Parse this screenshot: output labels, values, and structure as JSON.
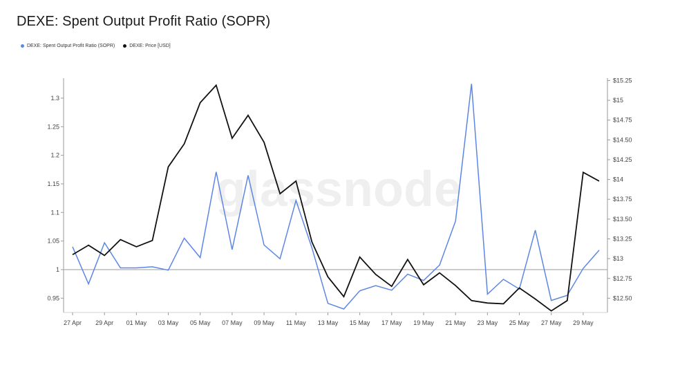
{
  "title": "DEXE: Spent Output Profit Ratio (SOPR)",
  "watermark": "glassnode",
  "colors": {
    "sopr": "#5b86e5",
    "price": "#111111",
    "axis": "#9a9a9a",
    "baseline": "#9a9a9a"
  },
  "legend": [
    {
      "label": "DEXE: Spent Output Profit Ratio (SOPR)",
      "color": "#5b86e5"
    },
    {
      "label": "DEXE: Price [USD]",
      "color": "#111111"
    }
  ],
  "chart_data": {
    "type": "line",
    "title": "DEXE: Spent Output Profit Ratio (SOPR)",
    "categories": [
      "27 Apr",
      "28 Apr",
      "29 Apr",
      "30 Apr",
      "01 May",
      "02 May",
      "03 May",
      "04 May",
      "05 May",
      "06 May",
      "07 May",
      "08 May",
      "09 May",
      "10 May",
      "11 May",
      "12 May",
      "13 May",
      "14 May",
      "15 May",
      "16 May",
      "17 May",
      "18 May",
      "19 May",
      "20 May",
      "21 May",
      "22 May",
      "23 May",
      "24 May",
      "25 May",
      "26 May",
      "27 May",
      "28 May",
      "29 May",
      "30 May"
    ],
    "x_tick_labels": [
      "27 Apr",
      "29 Apr",
      "01 May",
      "03 May",
      "05 May",
      "07 May",
      "09 May",
      "11 May",
      "13 May",
      "15 May",
      "17 May",
      "19 May",
      "21 May",
      "23 May",
      "25 May",
      "27 May",
      "29 May"
    ],
    "left_axis": {
      "ylim": [
        0.925,
        1.335
      ],
      "ticks": [
        0.95,
        1,
        1.05,
        1.1,
        1.15,
        1.2,
        1.25,
        1.3
      ],
      "tick_labels": [
        "0.95",
        "1",
        "1.05",
        "1.1",
        "1.15",
        "1.2",
        "1.25",
        "1.3"
      ]
    },
    "right_axis": {
      "ylim": [
        12.32,
        15.28
      ],
      "ticks": [
        12.5,
        12.75,
        13,
        13.25,
        13.5,
        13.75,
        14,
        14.25,
        14.5,
        14.75,
        15,
        15.25
      ],
      "tick_labels": [
        "$12.50",
        "$12.75",
        "$13",
        "$13.25",
        "$13.50",
        "$13.75",
        "$14",
        "$14.25",
        "$14.50",
        "$14.75",
        "$15",
        "$15.25"
      ]
    },
    "baseline": 1,
    "series": [
      {
        "name": "DEXE: Spent Output Profit Ratio (SOPR)",
        "axis": "left",
        "values": [
          1.04,
          0.975,
          1.047,
          1.003,
          1.003,
          1.005,
          0.999,
          1.055,
          1.021,
          1.171,
          1.035,
          1.165,
          1.043,
          1.019,
          1.121,
          1.038,
          0.941,
          0.931,
          0.963,
          0.972,
          0.964,
          0.992,
          0.981,
          1.008,
          1.085,
          1.325,
          0.957,
          0.983,
          0.966,
          1.069,
          0.946,
          0.955,
          1.002,
          1.034
        ]
      },
      {
        "name": "DEXE: Price [USD]",
        "axis": "right",
        "values": [
          13.05,
          13.17,
          13.04,
          13.24,
          13.15,
          13.23,
          14.16,
          14.45,
          14.97,
          15.19,
          14.52,
          14.81,
          14.47,
          13.82,
          13.98,
          13.21,
          12.77,
          12.52,
          13.02,
          12.8,
          12.65,
          12.99,
          12.67,
          12.82,
          12.66,
          12.47,
          12.44,
          12.43,
          12.63,
          12.49,
          12.34,
          12.47,
          14.09,
          13.98
        ]
      }
    ]
  }
}
